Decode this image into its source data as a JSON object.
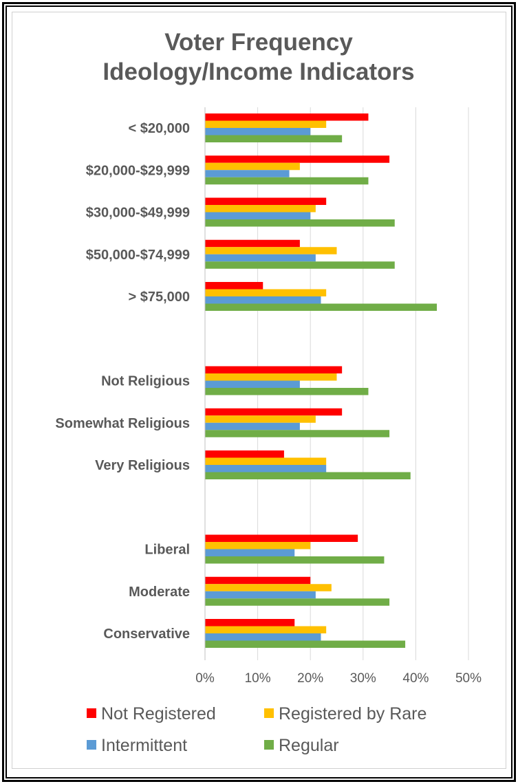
{
  "chart_data": {
    "type": "bar",
    "orientation": "horizontal",
    "title": "Voter Frequency",
    "subtitle": "Ideology/Income Indicators",
    "categories": [
      "< $20,000",
      "$20,000-$29,999",
      "$30,000-$49,999",
      "$50,000-$74,999",
      "> $75,000",
      "",
      "Not Religious",
      "Somewhat Religious",
      "Very Religious",
      "",
      "Liberal",
      "Moderate",
      "Conservative"
    ],
    "series": [
      {
        "name": "Not Registered",
        "color": "#ff0000",
        "values": [
          31,
          35,
          23,
          18,
          11,
          null,
          26,
          26,
          15,
          null,
          29,
          20,
          17
        ]
      },
      {
        "name": "Registered by Rare",
        "color": "#ffc000",
        "values": [
          23,
          18,
          21,
          25,
          23,
          null,
          25,
          21,
          23,
          null,
          20,
          24,
          23
        ]
      },
      {
        "name": "Intermittent",
        "color": "#5b9bd5",
        "values": [
          20,
          16,
          20,
          21,
          22,
          null,
          18,
          18,
          23,
          null,
          17,
          21,
          22
        ]
      },
      {
        "name": "Regular",
        "color": "#70ad47",
        "values": [
          26,
          31,
          36,
          36,
          44,
          null,
          31,
          35,
          39,
          null,
          34,
          35,
          38
        ]
      }
    ],
    "x_ticks": [
      "0%",
      "10%",
      "20%",
      "30%",
      "40%",
      "50%"
    ],
    "xlim": [
      0,
      50
    ],
    "grid": true,
    "legend_position": "bottom"
  }
}
